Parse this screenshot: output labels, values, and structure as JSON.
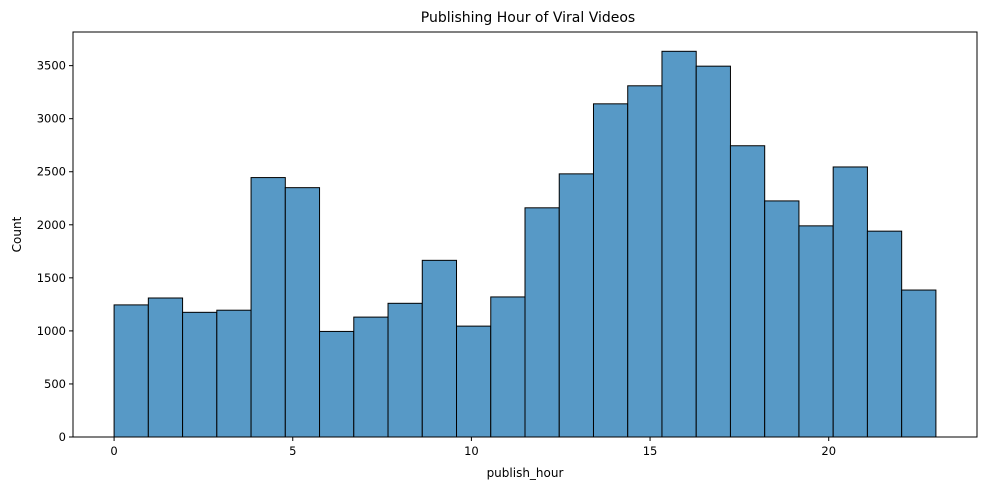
{
  "chart_data": {
    "type": "bar",
    "title": "Publishing Hour of Viral Videos",
    "xlabel": "publish_hour",
    "ylabel": "Count",
    "bin_edges": [
      0,
      0.9583,
      1.9167,
      2.875,
      3.8333,
      4.7917,
      5.75,
      6.7083,
      7.6667,
      8.625,
      9.5833,
      10.5417,
      11.5,
      12.4583,
      13.4167,
      14.375,
      15.3333,
      16.2917,
      17.25,
      18.2083,
      19.1667,
      20.125,
      21.0833,
      22.0417,
      23
    ],
    "values": [
      1245,
      1310,
      1175,
      1195,
      2445,
      2350,
      995,
      1130,
      1260,
      1665,
      1045,
      1320,
      2160,
      2480,
      3140,
      3310,
      3635,
      3495,
      2745,
      2225,
      1990,
      2545,
      1940,
      1385
    ],
    "xlim": [
      -1.15,
      24.15
    ],
    "ylim": [
      0,
      3817
    ],
    "xticks": [
      0,
      5,
      10,
      15,
      20
    ],
    "yticks": [
      0,
      500,
      1000,
      1500,
      2000,
      2500,
      3000,
      3500
    ],
    "grid": false,
    "bar_color": "#5799c6",
    "edge_color": "#000000"
  }
}
